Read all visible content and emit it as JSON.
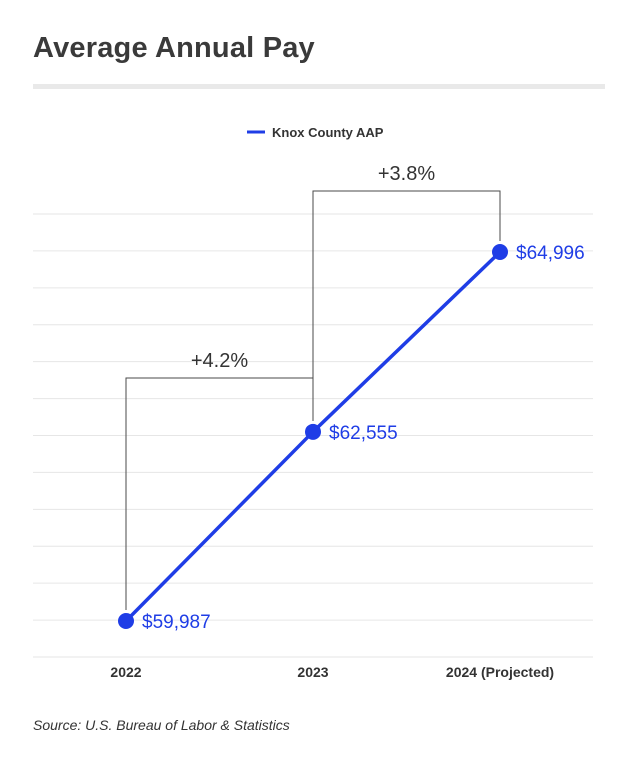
{
  "title": "Average Annual Pay",
  "source": "Source: U.S. Bureau of Labor & Statistics",
  "colors": {
    "series": "#1f3de6",
    "grid": "#e6e6e6",
    "bracket": "#4a4a4a",
    "text": "#333333"
  },
  "chart_data": {
    "type": "line",
    "categories": [
      "2022",
      "2023",
      "2024 (Projected)"
    ],
    "series": [
      {
        "name": "Knox County AAP",
        "values": [
          59987,
          62555,
          64996
        ]
      }
    ],
    "data_labels": [
      "$59,987",
      "$62,555",
      "$64,996"
    ],
    "ylim": [
      59500,
      66000
    ],
    "grid": true,
    "legend": "top-center",
    "annotations": [
      {
        "from": "2022",
        "to": "2023",
        "text": "+4.2%"
      },
      {
        "from": "2023",
        "to": "2024 (Projected)",
        "text": "+3.8%"
      }
    ]
  }
}
